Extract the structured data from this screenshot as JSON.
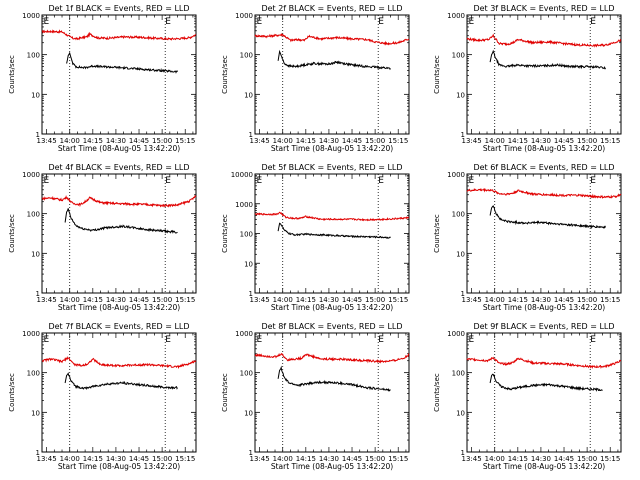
{
  "chart_data": [
    {
      "type": "line",
      "title": "Det 1f BLACK = Events, RED = LLD",
      "xlabel": "Start Time (08-Aug-05 13:42:20)",
      "ylabel": "Counts/sec",
      "yscale": "log",
      "ylim": [
        1,
        1000
      ],
      "yticks": [
        "1",
        "10",
        "100",
        "1000"
      ],
      "xlim": [
        "13:42",
        "15:22"
      ],
      "xticks": [
        "13:45",
        "14:00",
        "14:15",
        "14:30",
        "14:45",
        "15:00",
        "15:15"
      ],
      "vlines": [
        "14:00",
        "15:02"
      ],
      "markers": [
        {
          "label": "E",
          "x": "13:43"
        },
        {
          "label": "E",
          "x": "15:02"
        }
      ],
      "series": [
        {
          "name": "RED = LLD",
          "color": "#e00000",
          "x": [
            "13:42",
            "13:48",
            "13:55",
            "13:59",
            "14:02",
            "14:05",
            "14:08",
            "14:11",
            "14:13",
            "14:18",
            "14:25",
            "14:35",
            "14:45",
            "14:55",
            "15:05",
            "15:12",
            "15:18",
            "15:22"
          ],
          "y": [
            380,
            385,
            375,
            300,
            260,
            250,
            270,
            280,
            330,
            265,
            260,
            280,
            275,
            260,
            250,
            255,
            270,
            320
          ]
        },
        {
          "name": "BLACK = Events",
          "color": "#000000",
          "x": [
            "13:58",
            "13:59",
            "14:00",
            "14:01",
            "14:02",
            "14:04",
            "14:07",
            "14:10",
            "14:15",
            "14:20",
            "14:30",
            "14:40",
            "14:50",
            "14:58",
            "15:05",
            "15:10"
          ],
          "y": [
            60,
            95,
            110,
            80,
            60,
            50,
            48,
            47,
            52,
            50,
            48,
            45,
            42,
            40,
            38,
            37
          ]
        }
      ]
    },
    {
      "type": "line",
      "title": "Det 2f BLACK = Events, RED = LLD",
      "xlabel": "Start Time (08-Aug-05 13:42:20)",
      "ylabel": "Counts/sec",
      "yscale": "log",
      "ylim": [
        1,
        1000
      ],
      "yticks": [
        "1",
        "10",
        "100",
        "1000"
      ],
      "xlim": [
        "13:42",
        "15:22"
      ],
      "xticks": [
        "13:45",
        "14:00",
        "14:15",
        "14:30",
        "14:45",
        "15:00",
        "15:15"
      ],
      "vlines": [
        "14:00",
        "15:02"
      ],
      "markers": [
        {
          "label": "E",
          "x": "13:43"
        },
        {
          "label": "E",
          "x": "15:02"
        }
      ],
      "series": [
        {
          "name": "RED = LLD",
          "color": "#e00000",
          "x": [
            "13:42",
            "13:50",
            "13:57",
            "14:00",
            "14:05",
            "14:10",
            "14:14",
            "14:17",
            "14:25",
            "14:35",
            "14:45",
            "14:55",
            "15:00",
            "15:08",
            "15:15",
            "15:22"
          ],
          "y": [
            300,
            290,
            310,
            320,
            230,
            240,
            230,
            290,
            250,
            270,
            250,
            240,
            210,
            190,
            200,
            250
          ]
        },
        {
          "name": "BLACK = Events",
          "color": "#000000",
          "x": [
            "13:57",
            "13:58",
            "13:59",
            "14:01",
            "14:04",
            "14:08",
            "14:14",
            "14:20",
            "14:30",
            "14:35",
            "14:45",
            "14:55",
            "15:05",
            "15:10"
          ],
          "y": [
            70,
            120,
            95,
            60,
            52,
            50,
            55,
            60,
            58,
            65,
            55,
            50,
            47,
            45
          ]
        }
      ]
    },
    {
      "type": "line",
      "title": "Det 3f BLACK = Events, RED = LLD",
      "xlabel": "Start Time (08-Aug-05 13:42:20)",
      "ylabel": "Counts/sec",
      "yscale": "log",
      "ylim": [
        1,
        1000
      ],
      "yticks": [
        "1",
        "10",
        "100",
        "1000"
      ],
      "xlim": [
        "13:42",
        "15:22"
      ],
      "xticks": [
        "13:45",
        "14:00",
        "14:15",
        "14:30",
        "14:45",
        "15:00",
        "15:15"
      ],
      "vlines": [
        "14:00",
        "15:02"
      ],
      "markers": [
        {
          "label": "E",
          "x": "13:43"
        },
        {
          "label": "E",
          "x": "15:02"
        }
      ],
      "series": [
        {
          "name": "RED = LLD",
          "color": "#e00000",
          "x": [
            "13:42",
            "13:50",
            "13:56",
            "13:59",
            "14:03",
            "14:08",
            "14:12",
            "14:15",
            "14:25",
            "14:35",
            "14:45",
            "14:55",
            "15:05",
            "15:12",
            "15:22"
          ],
          "y": [
            250,
            230,
            240,
            300,
            190,
            185,
            200,
            240,
            200,
            210,
            190,
            175,
            170,
            175,
            230
          ]
        },
        {
          "name": "BLACK = Events",
          "color": "#000000",
          "x": [
            "13:57",
            "13:58",
            "13:59",
            "14:01",
            "14:03",
            "14:08",
            "14:14",
            "14:22",
            "14:30",
            "14:40",
            "14:50",
            "15:00",
            "15:08",
            "15:12"
          ],
          "y": [
            65,
            100,
            120,
            75,
            55,
            50,
            55,
            52,
            52,
            55,
            50,
            50,
            48,
            46
          ]
        }
      ]
    },
    {
      "type": "line",
      "title": "Det 4f BLACK = Events, RED = LLD",
      "xlabel": "Start Time (08-Aug-05 13:42:20)",
      "ylabel": "Counts/sec",
      "yscale": "log",
      "ylim": [
        1,
        1000
      ],
      "yticks": [
        "1",
        "10",
        "100",
        "1000"
      ],
      "xlim": [
        "13:42",
        "15:22"
      ],
      "xticks": [
        "13:45",
        "14:00",
        "14:15",
        "14:30",
        "14:45",
        "15:00",
        "15:15"
      ],
      "vlines": [
        "14:00",
        "15:02"
      ],
      "markers": [
        {
          "label": "E",
          "x": "13:43"
        },
        {
          "label": "E",
          "x": "15:02"
        }
      ],
      "series": [
        {
          "name": "RED = LLD",
          "color": "#e00000",
          "x": [
            "13:42",
            "13:48",
            "13:55",
            "13:58",
            "14:02",
            "14:07",
            "14:10",
            "14:13",
            "14:20",
            "14:30",
            "14:40",
            "14:50",
            "15:00",
            "15:10",
            "15:18",
            "15:22"
          ],
          "y": [
            240,
            250,
            220,
            260,
            180,
            170,
            200,
            250,
            190,
            180,
            175,
            170,
            160,
            165,
            210,
            280
          ]
        },
        {
          "name": "BLACK = Events",
          "color": "#000000",
          "x": [
            "13:57",
            "13:58",
            "13:59",
            "14:01",
            "14:04",
            "14:08",
            "14:15",
            "14:25",
            "14:35",
            "14:45",
            "14:55",
            "15:05",
            "15:10"
          ],
          "y": [
            60,
            110,
            130,
            75,
            50,
            42,
            38,
            45,
            48,
            42,
            38,
            35,
            34
          ]
        }
      ]
    },
    {
      "type": "line",
      "title": "Det 5f BLACK = Events, RED = LLD",
      "xlabel": "Start Time (08-Aug-05 13:42:20)",
      "ylabel": "Counts/sec",
      "yscale": "log",
      "ylim": [
        1,
        10000
      ],
      "yticks": [
        "1",
        "10",
        "100",
        "1000",
        "10000"
      ],
      "xlim": [
        "13:42",
        "15:22"
      ],
      "xticks": [
        "13:45",
        "14:00",
        "14:15",
        "14:30",
        "14:45",
        "15:00",
        "15:15"
      ],
      "vlines": [
        "14:00",
        "15:02"
      ],
      "markers": [
        {
          "label": "E",
          "x": "13:43"
        },
        {
          "label": "E",
          "x": "15:02"
        }
      ],
      "series": [
        {
          "name": "RED = LLD",
          "color": "#e00000",
          "x": [
            "13:42",
            "13:50",
            "13:57",
            "13:58",
            "14:02",
            "14:08",
            "14:12",
            "14:15",
            "14:25",
            "14:35",
            "14:45",
            "14:55",
            "15:05",
            "15:12",
            "15:22"
          ],
          "y": [
            450,
            440,
            450,
            520,
            350,
            320,
            330,
            370,
            300,
            300,
            300,
            290,
            300,
            310,
            340
          ]
        },
        {
          "name": "BLACK = Events",
          "color": "#000000",
          "x": [
            "13:57",
            "13:58",
            "13:59",
            "14:01",
            "14:04",
            "14:08",
            "14:15",
            "14:25",
            "14:35",
            "14:45",
            "14:55",
            "15:05",
            "15:10"
          ],
          "y": [
            120,
            220,
            200,
            130,
            100,
            90,
            95,
            90,
            85,
            80,
            78,
            75,
            72
          ]
        }
      ]
    },
    {
      "type": "line",
      "title": "Det 6f BLACK = Events, RED = LLD",
      "xlabel": "Start Time (08-Aug-05 13:42:20)",
      "ylabel": "Counts/sec",
      "yscale": "log",
      "ylim": [
        1,
        1000
      ],
      "yticks": [
        "1",
        "10",
        "100",
        "1000"
      ],
      "xlim": [
        "13:42",
        "15:22"
      ],
      "xticks": [
        "13:45",
        "14:00",
        "14:15",
        "14:30",
        "14:45",
        "15:00",
        "15:15"
      ],
      "vlines": [
        "14:00",
        "15:02"
      ],
      "markers": [
        {
          "label": "E",
          "x": "13:43"
        },
        {
          "label": "E",
          "x": "15:02"
        }
      ],
      "series": [
        {
          "name": "RED = LLD",
          "color": "#e00000",
          "x": [
            "13:42",
            "13:50",
            "13:58",
            "14:03",
            "14:08",
            "14:12",
            "14:15",
            "14:25",
            "14:35",
            "14:45",
            "14:55",
            "15:05",
            "15:12",
            "15:18",
            "15:22"
          ],
          "y": [
            380,
            400,
            390,
            320,
            310,
            330,
            380,
            310,
            300,
            290,
            290,
            270,
            260,
            270,
            300
          ]
        },
        {
          "name": "BLACK = Events",
          "color": "#000000",
          "x": [
            "13:57",
            "13:58",
            "13:59",
            "14:01",
            "14:04",
            "14:10",
            "14:20",
            "14:30",
            "14:40",
            "14:50",
            "15:00",
            "15:08",
            "15:12"
          ],
          "y": [
            90,
            140,
            160,
            100,
            70,
            62,
            58,
            60,
            55,
            52,
            48,
            46,
            45
          ]
        }
      ]
    },
    {
      "type": "line",
      "title": "Det 7f BLACK = Events, RED = LLD",
      "xlabel": "Start Time (08-Aug-05 13:42:20)",
      "ylabel": "Counts/sec",
      "yscale": "log",
      "ylim": [
        1,
        1000
      ],
      "yticks": [
        "1",
        "10",
        "100",
        "1000"
      ],
      "xlim": [
        "13:42",
        "15:22"
      ],
      "xticks": [
        "13:45",
        "14:00",
        "14:15",
        "14:30",
        "14:45",
        "15:00",
        "15:15"
      ],
      "vlines": [
        "14:00",
        "15:02"
      ],
      "markers": [
        {
          "label": "E",
          "x": "13:43"
        },
        {
          "label": "E",
          "x": "15:02"
        }
      ],
      "series": [
        {
          "name": "RED = LLD",
          "color": "#e00000",
          "x": [
            "13:42",
            "13:48",
            "13:55",
            "13:59",
            "14:03",
            "14:08",
            "14:12",
            "14:15",
            "14:20",
            "14:30",
            "14:40",
            "14:50",
            "15:00",
            "15:10",
            "15:18",
            "15:22"
          ],
          "y": [
            200,
            220,
            190,
            240,
            160,
            150,
            170,
            220,
            160,
            150,
            155,
            160,
            150,
            140,
            170,
            200
          ]
        },
        {
          "name": "BLACK = Events",
          "color": "#000000",
          "x": [
            "13:57",
            "13:58",
            "13:59",
            "14:01",
            "14:04",
            "14:10",
            "14:15",
            "14:25",
            "14:35",
            "14:45",
            "14:55",
            "15:05",
            "15:10"
          ],
          "y": [
            55,
            85,
            95,
            60,
            45,
            40,
            45,
            52,
            55,
            50,
            45,
            42,
            42
          ]
        }
      ]
    },
    {
      "type": "line",
      "title": "Det 8f BLACK = Events, RED = LLD",
      "xlabel": "Start Time (08-Aug-05 13:42:20)",
      "ylabel": "Counts/sec",
      "yscale": "log",
      "ylim": [
        1,
        1000
      ],
      "yticks": [
        "1",
        "10",
        "100",
        "1000"
      ],
      "xlim": [
        "13:42",
        "15:22"
      ],
      "xticks": [
        "13:45",
        "14:00",
        "14:15",
        "14:30",
        "14:45",
        "15:00",
        "15:15"
      ],
      "vlines": [
        "14:00",
        "15:02"
      ],
      "markers": [
        {
          "label": "E",
          "x": "13:43"
        },
        {
          "label": "E",
          "x": "15:02"
        }
      ],
      "series": [
        {
          "name": "RED = LLD",
          "color": "#e00000",
          "x": [
            "13:42",
            "13:50",
            "13:56",
            "13:59",
            "14:03",
            "14:08",
            "14:12",
            "14:15",
            "14:25",
            "14:35",
            "14:45",
            "14:55",
            "15:05",
            "15:12",
            "15:18",
            "15:22"
          ],
          "y": [
            280,
            260,
            250,
            300,
            210,
            220,
            230,
            290,
            220,
            220,
            210,
            200,
            190,
            200,
            230,
            280
          ]
        },
        {
          "name": "BLACK = Events",
          "color": "#000000",
          "x": [
            "13:57",
            "13:58",
            "13:59",
            "14:01",
            "14:04",
            "14:10",
            "14:15",
            "14:25",
            "14:35",
            "14:45",
            "14:55",
            "15:05",
            "15:10"
          ],
          "y": [
            70,
            115,
            130,
            75,
            55,
            48,
            52,
            58,
            55,
            50,
            42,
            38,
            36
          ]
        }
      ]
    },
    {
      "type": "line",
      "title": "Det 9f BLACK = Events, RED = LLD",
      "xlabel": "Start Time (08-Aug-05 13:42:20)",
      "ylabel": "Counts/sec",
      "yscale": "log",
      "ylim": [
        1,
        1000
      ],
      "yticks": [
        "1",
        "10",
        "100",
        "1000"
      ],
      "xlim": [
        "13:42",
        "15:22"
      ],
      "xticks": [
        "13:45",
        "14:00",
        "14:15",
        "14:30",
        "14:45",
        "15:00",
        "15:15"
      ],
      "vlines": [
        "14:00",
        "15:02"
      ],
      "markers": [
        {
          "label": "E",
          "x": "13:43"
        },
        {
          "label": "E",
          "x": "15:02"
        }
      ],
      "series": [
        {
          "name": "RED = LLD",
          "color": "#e00000",
          "x": [
            "13:42",
            "13:50",
            "13:56",
            "13:59",
            "14:03",
            "14:08",
            "14:12",
            "14:15",
            "14:25",
            "14:35",
            "14:45",
            "14:55",
            "15:05",
            "15:12",
            "15:18",
            "15:22"
          ],
          "y": [
            220,
            210,
            200,
            240,
            170,
            165,
            180,
            230,
            175,
            170,
            165,
            150,
            140,
            145,
            170,
            200
          ]
        },
        {
          "name": "BLACK = Events",
          "color": "#000000",
          "x": [
            "13:57",
            "13:58",
            "13:59",
            "14:01",
            "14:04",
            "14:10",
            "14:15",
            "14:25",
            "14:35",
            "14:45",
            "14:55",
            "15:05",
            "15:10"
          ],
          "y": [
            55,
            85,
            95,
            60,
            45,
            38,
            42,
            48,
            50,
            45,
            40,
            38,
            37
          ]
        }
      ]
    }
  ]
}
